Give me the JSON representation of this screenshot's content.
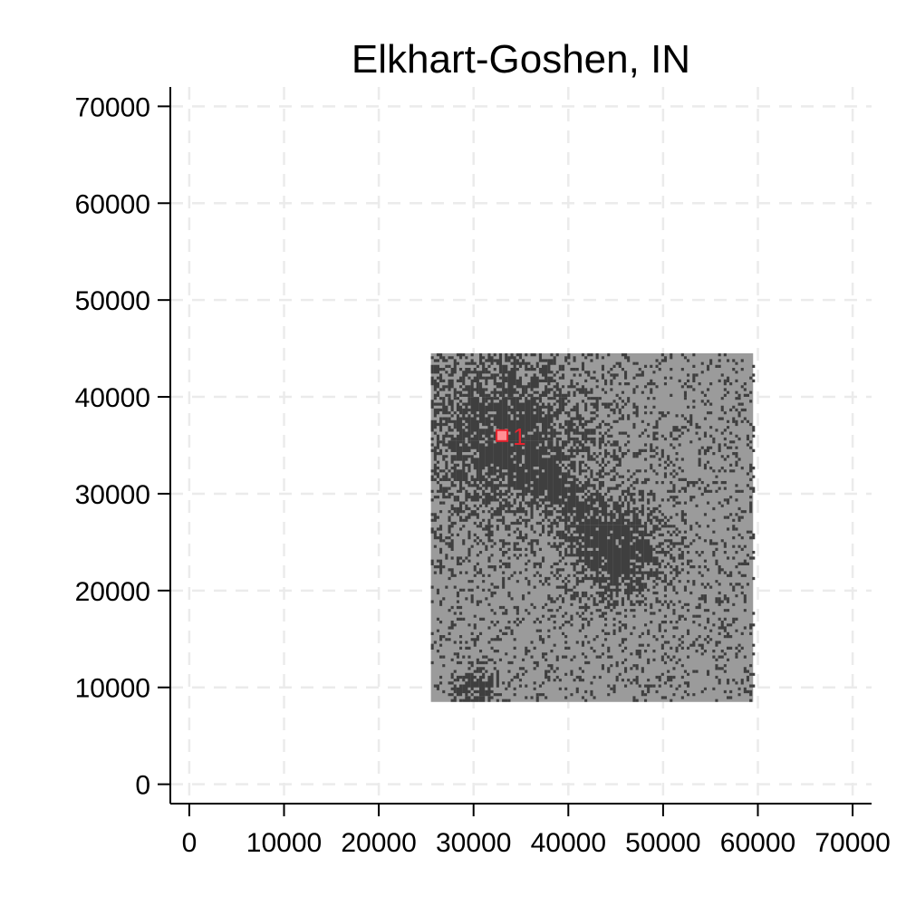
{
  "chart_data": {
    "type": "heatmap",
    "title": "Elkhart-Goshen, IN",
    "xlabel": "",
    "ylabel": "",
    "xlim": [
      -2000,
      72000
    ],
    "ylim": [
      -2000,
      72000
    ],
    "x_ticks": [
      0,
      10000,
      20000,
      30000,
      40000,
      50000,
      60000,
      70000
    ],
    "y_ticks": [
      0,
      10000,
      20000,
      30000,
      40000,
      50000,
      60000,
      70000
    ],
    "x_tick_labels": [
      "0",
      "10000",
      "20000",
      "30000",
      "40000",
      "50000",
      "60000",
      "70000"
    ],
    "y_tick_labels": [
      "0",
      "10000",
      "20000",
      "30000",
      "40000",
      "50000",
      "60000",
      "70000"
    ],
    "grid": true,
    "region_extent": {
      "x": [
        25500,
        59500
      ],
      "y": [
        8500,
        44500
      ]
    },
    "dense_areas": [
      {
        "x": 33000,
        "y": 36000,
        "radius": 6000
      },
      {
        "x": 45000,
        "y": 24000,
        "radius": 3500
      },
      {
        "x": 30000,
        "y": 9500,
        "radius": 1500
      }
    ],
    "markers": [
      {
        "label": "1",
        "x": 33000,
        "y": 36000
      }
    ],
    "colors": {
      "region": "#9b9b9b",
      "dense": "#3f3f3f",
      "marker": "#e8242f",
      "grid": "#ebebeb",
      "axis": "#000000"
    }
  }
}
